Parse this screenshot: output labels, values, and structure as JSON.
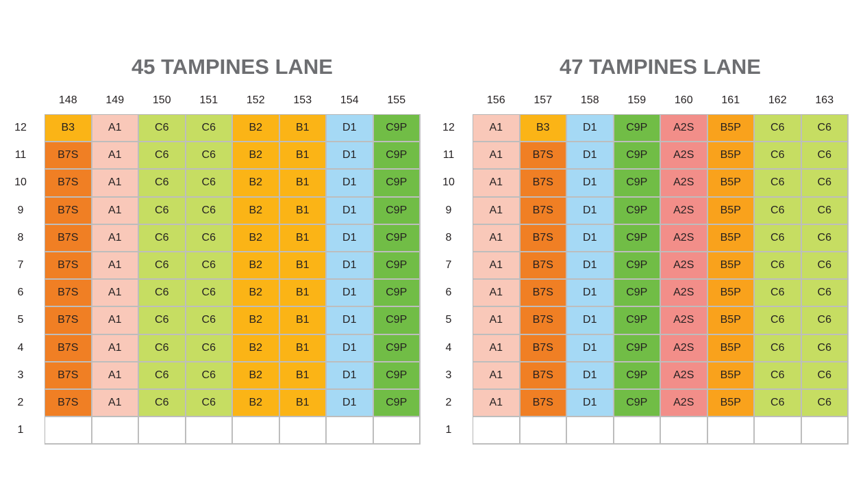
{
  "colors": {
    "B3": "#fbb416",
    "B2": "#fbb416",
    "B1": "#fbb416",
    "B5P": "#f9a21c",
    "B7S": "#f07f24",
    "A1": "#f9c8b9",
    "A2S": "#f28e89",
    "C6": "#c6dd62",
    "C9P": "#71bd46",
    "D1": "#a5d9f5",
    "": "#ffffff"
  },
  "blocks": [
    {
      "title": "45 TAMPINES LANE",
      "columns": [
        "148",
        "149",
        "150",
        "151",
        "152",
        "153",
        "154",
        "155"
      ],
      "rows": [
        {
          "floor": "12",
          "cells": [
            "B3",
            "A1",
            "C6",
            "C6",
            "B2",
            "B1",
            "D1",
            "C9P"
          ]
        },
        {
          "floor": "11",
          "cells": [
            "B7S",
            "A1",
            "C6",
            "C6",
            "B2",
            "B1",
            "D1",
            "C9P"
          ]
        },
        {
          "floor": "10",
          "cells": [
            "B7S",
            "A1",
            "C6",
            "C6",
            "B2",
            "B1",
            "D1",
            "C9P"
          ]
        },
        {
          "floor": "9",
          "cells": [
            "B7S",
            "A1",
            "C6",
            "C6",
            "B2",
            "B1",
            "D1",
            "C9P"
          ]
        },
        {
          "floor": "8",
          "cells": [
            "B7S",
            "A1",
            "C6",
            "C6",
            "B2",
            "B1",
            "D1",
            "C9P"
          ]
        },
        {
          "floor": "7",
          "cells": [
            "B7S",
            "A1",
            "C6",
            "C6",
            "B2",
            "B1",
            "D1",
            "C9P"
          ]
        },
        {
          "floor": "6",
          "cells": [
            "B7S",
            "A1",
            "C6",
            "C6",
            "B2",
            "B1",
            "D1",
            "C9P"
          ]
        },
        {
          "floor": "5",
          "cells": [
            "B7S",
            "A1",
            "C6",
            "C6",
            "B2",
            "B1",
            "D1",
            "C9P"
          ]
        },
        {
          "floor": "4",
          "cells": [
            "B7S",
            "A1",
            "C6",
            "C6",
            "B2",
            "B1",
            "D1",
            "C9P"
          ]
        },
        {
          "floor": "3",
          "cells": [
            "B7S",
            "A1",
            "C6",
            "C6",
            "B2",
            "B1",
            "D1",
            "C9P"
          ]
        },
        {
          "floor": "2",
          "cells": [
            "B7S",
            "A1",
            "C6",
            "C6",
            "B2",
            "B1",
            "D1",
            "C9P"
          ]
        },
        {
          "floor": "1",
          "cells": [
            "",
            "",
            "",
            "",
            "",
            "",
            "",
            ""
          ]
        }
      ]
    },
    {
      "title": "47 TAMPINES LANE",
      "columns": [
        "156",
        "157",
        "158",
        "159",
        "160",
        "161",
        "162",
        "163"
      ],
      "rows": [
        {
          "floor": "12",
          "cells": [
            "A1",
            "B3",
            "D1",
            "C9P",
            "A2S",
            "B5P",
            "C6",
            "C6"
          ]
        },
        {
          "floor": "11",
          "cells": [
            "A1",
            "B7S",
            "D1",
            "C9P",
            "A2S",
            "B5P",
            "C6",
            "C6"
          ]
        },
        {
          "floor": "10",
          "cells": [
            "A1",
            "B7S",
            "D1",
            "C9P",
            "A2S",
            "B5P",
            "C6",
            "C6"
          ]
        },
        {
          "floor": "9",
          "cells": [
            "A1",
            "B7S",
            "D1",
            "C9P",
            "A2S",
            "B5P",
            "C6",
            "C6"
          ]
        },
        {
          "floor": "8",
          "cells": [
            "A1",
            "B7S",
            "D1",
            "C9P",
            "A2S",
            "B5P",
            "C6",
            "C6"
          ]
        },
        {
          "floor": "7",
          "cells": [
            "A1",
            "B7S",
            "D1",
            "C9P",
            "A2S",
            "B5P",
            "C6",
            "C6"
          ]
        },
        {
          "floor": "6",
          "cells": [
            "A1",
            "B7S",
            "D1",
            "C9P",
            "A2S",
            "B5P",
            "C6",
            "C6"
          ]
        },
        {
          "floor": "5",
          "cells": [
            "A1",
            "B7S",
            "D1",
            "C9P",
            "A2S",
            "B5P",
            "C6",
            "C6"
          ]
        },
        {
          "floor": "4",
          "cells": [
            "A1",
            "B7S",
            "D1",
            "C9P",
            "A2S",
            "B5P",
            "C6",
            "C6"
          ]
        },
        {
          "floor": "3",
          "cells": [
            "A1",
            "B7S",
            "D1",
            "C9P",
            "A2S",
            "B5P",
            "C6",
            "C6"
          ]
        },
        {
          "floor": "2",
          "cells": [
            "A1",
            "B7S",
            "D1",
            "C9P",
            "A2S",
            "B5P",
            "C6",
            "C6"
          ]
        },
        {
          "floor": "1",
          "cells": [
            "",
            "",
            "",
            "",
            "",
            "",
            "",
            ""
          ]
        }
      ]
    }
  ]
}
